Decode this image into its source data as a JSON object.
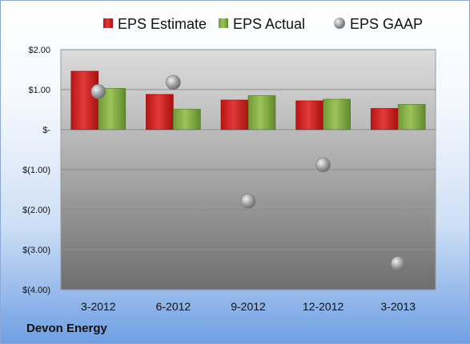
{
  "company": "Devon Energy",
  "colors": {
    "estimate": "#d42a2a",
    "actual": "#86b04a",
    "gaap": "#a6a6a6"
  },
  "chart_data": {
    "type": "bar",
    "categories": [
      "3-2012",
      "6-2012",
      "9-2012",
      "12-2012",
      "3-2013"
    ],
    "series": [
      {
        "name": "EPS Estimate",
        "kind": "bar",
        "values": [
          1.46,
          0.88,
          0.74,
          0.72,
          0.53
        ]
      },
      {
        "name": "EPS Actual",
        "kind": "bar",
        "values": [
          1.03,
          0.51,
          0.85,
          0.76,
          0.63
        ]
      },
      {
        "name": "EPS GAAP",
        "kind": "marker",
        "values": [
          0.95,
          1.18,
          -1.79,
          -0.88,
          -3.35
        ]
      }
    ],
    "y_ticks": [
      {
        "value": 2,
        "label": "$2.00"
      },
      {
        "value": 1,
        "label": "$1.00"
      },
      {
        "value": 0,
        "label": "$-"
      },
      {
        "value": -1,
        "label": "$(1.00)"
      },
      {
        "value": -2,
        "label": "$(2.00)"
      },
      {
        "value": -3,
        "label": "$(3.00)"
      },
      {
        "value": -4,
        "label": "$(4.00)"
      }
    ],
    "ylim": [
      -4,
      2
    ],
    "grid": true,
    "legend_position": "top"
  }
}
